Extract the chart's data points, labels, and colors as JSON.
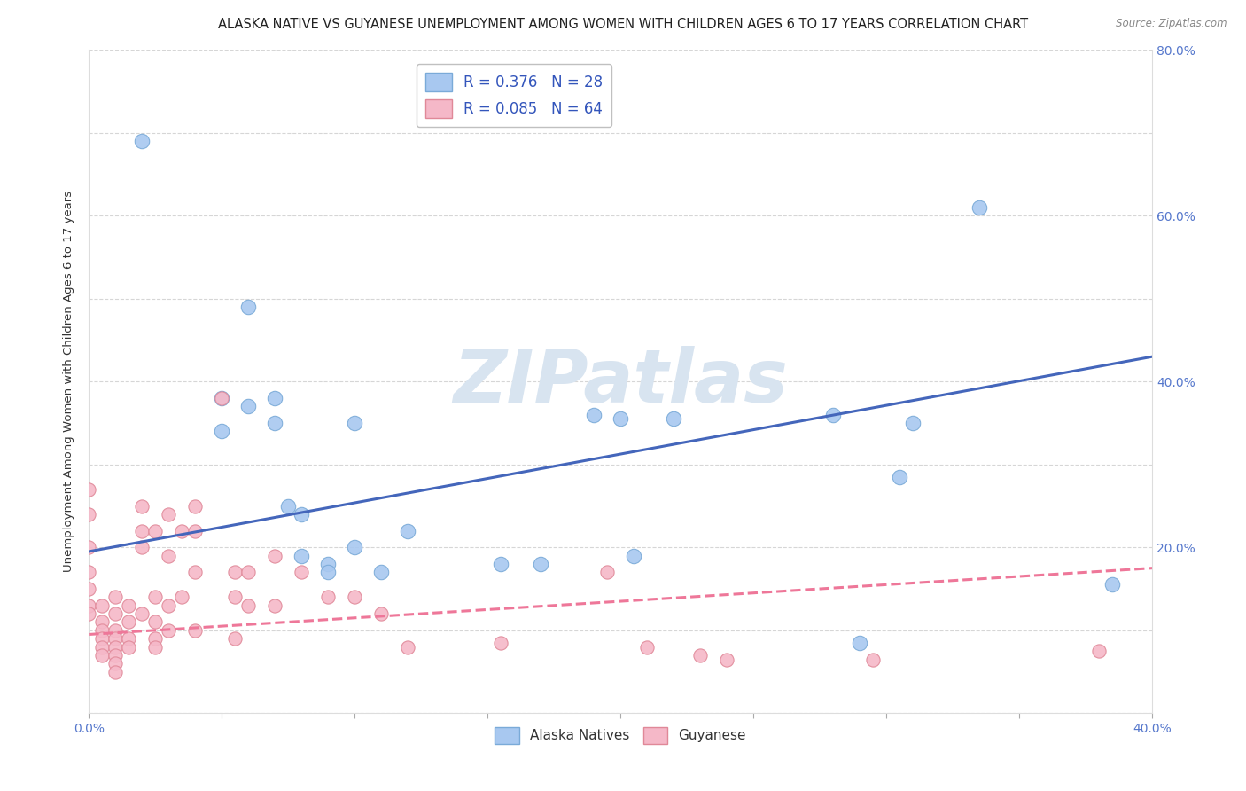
{
  "title": "ALASKA NATIVE VS GUYANESE UNEMPLOYMENT AMONG WOMEN WITH CHILDREN AGES 6 TO 17 YEARS CORRELATION CHART",
  "source": "Source: ZipAtlas.com",
  "ylabel": "Unemployment Among Women with Children Ages 6 to 17 years",
  "xlim": [
    0.0,
    0.4
  ],
  "ylim": [
    0.0,
    0.8
  ],
  "xticks": [
    0.0,
    0.05,
    0.1,
    0.15,
    0.2,
    0.25,
    0.3,
    0.35,
    0.4
  ],
  "xtick_labels": [
    "0.0%",
    "",
    "",
    "",
    "",
    "",
    "",
    "",
    "40.0%"
  ],
  "yticks": [
    0.0,
    0.1,
    0.2,
    0.3,
    0.4,
    0.5,
    0.6,
    0.7,
    0.8
  ],
  "ytick_labels_right": [
    "",
    "",
    "20.0%",
    "",
    "40.0%",
    "",
    "60.0%",
    "",
    "80.0%"
  ],
  "alaska_color": "#A8C8F0",
  "alaska_edge": "#7AAAD8",
  "guyanese_color": "#F5B8C8",
  "guyanese_edge": "#E08898",
  "alaska_line_color": "#4466BB",
  "guyanese_line_color": "#EE7799",
  "R_alaska": 0.376,
  "N_alaska": 28,
  "R_guyanese": 0.085,
  "N_guyanese": 64,
  "alaska_scatter": [
    [
      0.02,
      0.69
    ],
    [
      0.05,
      0.38
    ],
    [
      0.05,
      0.34
    ],
    [
      0.06,
      0.37
    ],
    [
      0.06,
      0.49
    ],
    [
      0.07,
      0.35
    ],
    [
      0.07,
      0.38
    ],
    [
      0.075,
      0.25
    ],
    [
      0.08,
      0.24
    ],
    [
      0.08,
      0.19
    ],
    [
      0.09,
      0.18
    ],
    [
      0.09,
      0.17
    ],
    [
      0.1,
      0.35
    ],
    [
      0.1,
      0.2
    ],
    [
      0.11,
      0.17
    ],
    [
      0.12,
      0.22
    ],
    [
      0.155,
      0.18
    ],
    [
      0.17,
      0.18
    ],
    [
      0.19,
      0.36
    ],
    [
      0.2,
      0.355
    ],
    [
      0.205,
      0.19
    ],
    [
      0.22,
      0.355
    ],
    [
      0.28,
      0.36
    ],
    [
      0.29,
      0.085
    ],
    [
      0.305,
      0.285
    ],
    [
      0.31,
      0.35
    ],
    [
      0.335,
      0.61
    ],
    [
      0.385,
      0.155
    ]
  ],
  "guyanese_scatter": [
    [
      0.0,
      0.27
    ],
    [
      0.0,
      0.24
    ],
    [
      0.0,
      0.2
    ],
    [
      0.0,
      0.17
    ],
    [
      0.0,
      0.15
    ],
    [
      0.0,
      0.13
    ],
    [
      0.0,
      0.12
    ],
    [
      0.005,
      0.13
    ],
    [
      0.005,
      0.11
    ],
    [
      0.005,
      0.1
    ],
    [
      0.005,
      0.09
    ],
    [
      0.005,
      0.08
    ],
    [
      0.005,
      0.07
    ],
    [
      0.01,
      0.14
    ],
    [
      0.01,
      0.12
    ],
    [
      0.01,
      0.1
    ],
    [
      0.01,
      0.09
    ],
    [
      0.01,
      0.08
    ],
    [
      0.01,
      0.07
    ],
    [
      0.01,
      0.06
    ],
    [
      0.01,
      0.05
    ],
    [
      0.015,
      0.13
    ],
    [
      0.015,
      0.11
    ],
    [
      0.015,
      0.09
    ],
    [
      0.015,
      0.08
    ],
    [
      0.02,
      0.25
    ],
    [
      0.02,
      0.22
    ],
    [
      0.02,
      0.2
    ],
    [
      0.02,
      0.12
    ],
    [
      0.025,
      0.22
    ],
    [
      0.025,
      0.14
    ],
    [
      0.025,
      0.11
    ],
    [
      0.025,
      0.09
    ],
    [
      0.025,
      0.08
    ],
    [
      0.03,
      0.24
    ],
    [
      0.03,
      0.19
    ],
    [
      0.03,
      0.13
    ],
    [
      0.03,
      0.1
    ],
    [
      0.035,
      0.22
    ],
    [
      0.035,
      0.14
    ],
    [
      0.04,
      0.25
    ],
    [
      0.04,
      0.22
    ],
    [
      0.04,
      0.17
    ],
    [
      0.04,
      0.1
    ],
    [
      0.05,
      0.38
    ],
    [
      0.055,
      0.17
    ],
    [
      0.055,
      0.14
    ],
    [
      0.055,
      0.09
    ],
    [
      0.06,
      0.17
    ],
    [
      0.06,
      0.13
    ],
    [
      0.07,
      0.19
    ],
    [
      0.07,
      0.13
    ],
    [
      0.08,
      0.17
    ],
    [
      0.09,
      0.14
    ],
    [
      0.1,
      0.14
    ],
    [
      0.11,
      0.12
    ],
    [
      0.12,
      0.08
    ],
    [
      0.155,
      0.085
    ],
    [
      0.195,
      0.17
    ],
    [
      0.21,
      0.08
    ],
    [
      0.23,
      0.07
    ],
    [
      0.24,
      0.065
    ],
    [
      0.295,
      0.065
    ],
    [
      0.38,
      0.075
    ]
  ],
  "alaska_line_x": [
    0.0,
    0.4
  ],
  "alaska_line_y": [
    0.195,
    0.43
  ],
  "guyanese_line_x": [
    0.0,
    0.4
  ],
  "guyanese_line_y": [
    0.095,
    0.175
  ],
  "background_color": "#FFFFFF",
  "grid_color": "#CCCCCC",
  "watermark_text": "ZIPatlas",
  "watermark_color": "#D8E4F0",
  "title_fontsize": 10.5,
  "axis_label_fontsize": 9.5,
  "tick_fontsize": 10,
  "legend_fontsize": 12
}
